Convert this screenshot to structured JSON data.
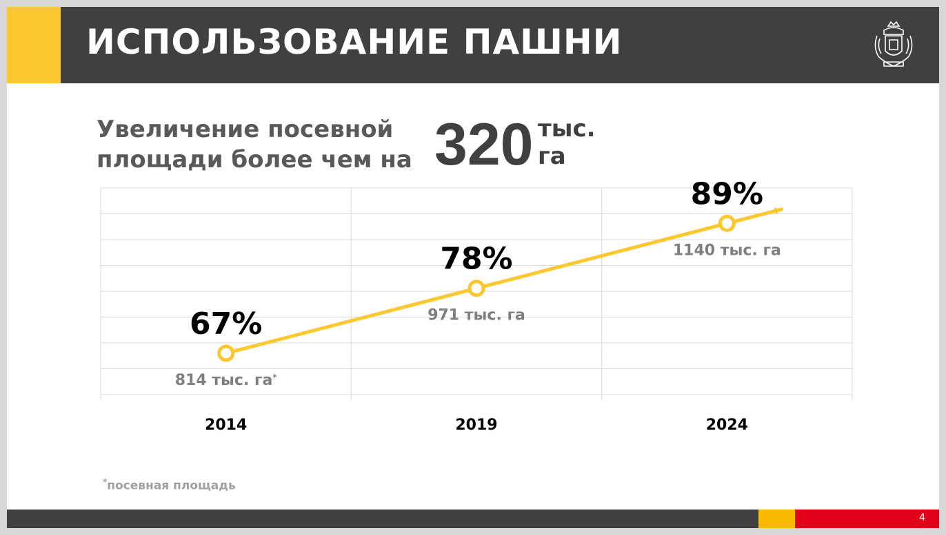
{
  "slide": {
    "title": "ИСПОЛЬЗОВАНИЕ ПАШНИ",
    "subtitle_line1": "Увеличение посевной",
    "subtitle_line2": "площади более чем на",
    "big_number": "320",
    "big_unit_line1": "тыс.",
    "big_unit_line2": "га",
    "footnote_mark": "*",
    "footnote_text": "посевная площадь",
    "page_number": "4"
  },
  "colors": {
    "header": "#404042",
    "accent_yellow": "#fdc82f",
    "line": "#fdc82f",
    "footer_red": "#e2001a",
    "value_text": "#7f7f7f"
  },
  "icons": {
    "emblem": "coat-of-arms-icon"
  },
  "chart_data": {
    "type": "line",
    "categories": [
      "2014",
      "2019",
      "2024"
    ],
    "series": [
      {
        "values": [
          67,
          78,
          89
        ],
        "unit": "%"
      }
    ],
    "point_labels": [
      "67%",
      "78%",
      "89%"
    ],
    "area_labels": [
      "814 тыс. га",
      "971 тыс. га",
      "1140 тыс. га"
    ],
    "area_label_marks": [
      "*",
      "",
      ""
    ],
    "area_values": [
      814,
      971,
      1140
    ],
    "grid": true,
    "trend_arrow": true
  }
}
